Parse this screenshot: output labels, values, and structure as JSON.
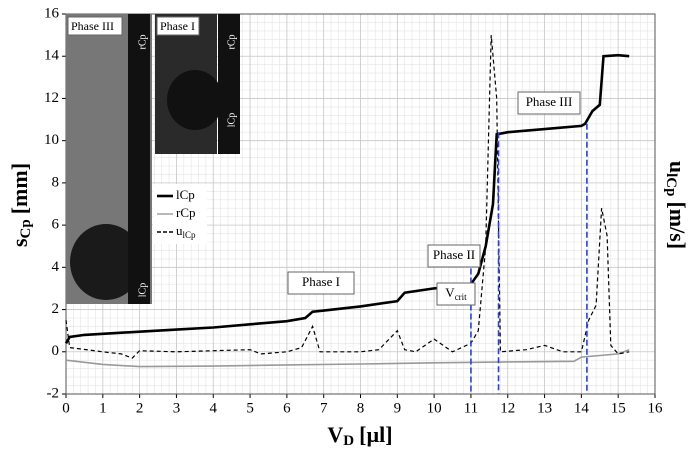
{
  "chart_data": {
    "type": "line",
    "x_label": {
      "main": "V",
      "sub": "D",
      "unit": "[µl]"
    },
    "y_label": {
      "main": "s",
      "sub": "Cp",
      "unit": "[mm]"
    },
    "y2_label": {
      "main": "u",
      "sub": "lCp",
      "unit": "[m/s]"
    },
    "xlim": [
      0,
      16
    ],
    "xticks": [
      0,
      1,
      2,
      3,
      4,
      5,
      6,
      7,
      8,
      9,
      10,
      11,
      12,
      13,
      14,
      15,
      16
    ],
    "ylim": [
      -2,
      16
    ],
    "yticks": [
      -2,
      0,
      2,
      4,
      6,
      8,
      10,
      12,
      14,
      16
    ],
    "grid": true,
    "series": [
      {
        "name": "lCp",
        "color": "#000000",
        "x": [
          0,
          0.1,
          0.5,
          1,
          2,
          3,
          4,
          5,
          6,
          6.5,
          6.7,
          7,
          8,
          9,
          9.2,
          10,
          10.5,
          11,
          11.2,
          11.4,
          11.6,
          11.7,
          12,
          13,
          14,
          14.1,
          14.3,
          14.5,
          14.6,
          15,
          15.3
        ],
        "values": [
          0.4,
          0.7,
          0.8,
          0.85,
          0.95,
          1.05,
          1.15,
          1.3,
          1.45,
          1.6,
          1.9,
          1.95,
          2.15,
          2.4,
          2.8,
          3.0,
          3.1,
          3.2,
          3.7,
          5,
          7,
          10.3,
          10.4,
          10.55,
          10.7,
          10.8,
          11.4,
          11.7,
          14.0,
          14.05,
          14.0
        ]
      },
      {
        "name": "rCp",
        "color": "#999999",
        "x": [
          0,
          1,
          2,
          4,
          6,
          8,
          10,
          12,
          13.8,
          14,
          15,
          15.3
        ],
        "values": [
          -0.4,
          -0.6,
          -0.7,
          -0.68,
          -0.62,
          -0.58,
          -0.52,
          -0.48,
          -0.45,
          -0.25,
          -0.1,
          0.1
        ]
      },
      {
        "name": "u",
        "name_sub": "lCp",
        "color": "#000000",
        "dashed": true,
        "x": [
          0,
          0.1,
          1,
          1.5,
          1.8,
          2,
          3,
          4,
          5,
          5.3,
          6,
          6.4,
          6.7,
          6.9,
          8,
          8.5,
          9,
          9.2,
          9.5,
          10,
          10.5,
          11,
          11.2,
          11.4,
          11.55,
          11.7,
          11.8,
          12.5,
          13,
          13.5,
          14,
          14.2,
          14.4,
          14.55,
          14.7,
          14.8,
          15,
          15.3
        ],
        "values": [
          1.5,
          0.2,
          0,
          -0.1,
          -0.3,
          0.05,
          0,
          0.05,
          0.1,
          -0.1,
          0,
          0.2,
          1.2,
          0,
          0,
          0.1,
          1.0,
          0.1,
          0,
          0.6,
          0,
          0.4,
          1.0,
          5,
          15,
          12,
          0,
          0.1,
          0.3,
          0,
          0,
          1.5,
          2.2,
          6.8,
          5.5,
          0.3,
          -0.1,
          0
        ]
      }
    ],
    "vlines": [
      11,
      11.75,
      14.15
    ],
    "vline_color": "#2b3fd0",
    "annotations": [
      "Phase I",
      "Phase II",
      {
        "main": "V",
        "sub": "crit"
      },
      "Phase III"
    ],
    "insets": [
      {
        "label": "Phase III",
        "tips": [
          "rCp",
          "lCp"
        ]
      },
      {
        "label": "Phase I",
        "tips": [
          "rCp",
          "lCp"
        ]
      }
    ]
  }
}
